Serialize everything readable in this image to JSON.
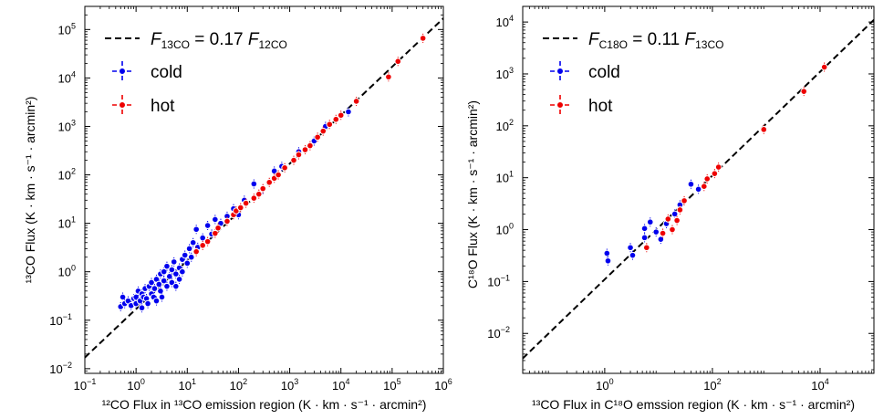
{
  "chart_data": [
    {
      "type": "scatter",
      "xlabel": "¹²CO Flux in ¹³CO emission region (K · km · s⁻¹ · arcmin²)",
      "ylabel": "¹³CO Flux (K · km · s⁻¹ · arcmin²)",
      "xscale": "log",
      "yscale": "log",
      "xlim": [
        0.1,
        1000000
      ],
      "ylim": [
        0.008,
        300000
      ],
      "xticks": [
        {
          "v": 0.1,
          "e": "−1"
        },
        {
          "v": 1,
          "e": "0"
        },
        {
          "v": 10,
          "e": "1"
        },
        {
          "v": 100,
          "e": "2"
        },
        {
          "v": 1000,
          "e": "3"
        },
        {
          "v": 10000,
          "e": "4"
        },
        {
          "v": 100000,
          "e": "5"
        },
        {
          "v": 1000000,
          "e": "6"
        }
      ],
      "yticks": [
        {
          "v": 0.01,
          "e": "−2"
        },
        {
          "v": 0.1,
          "e": "−1"
        },
        {
          "v": 1,
          "e": "0"
        },
        {
          "v": 10,
          "e": "1"
        },
        {
          "v": 100,
          "e": "2"
        },
        {
          "v": 1000,
          "e": "3"
        },
        {
          "v": 10000,
          "e": "4"
        },
        {
          "v": 100000,
          "e": "5"
        }
      ],
      "legend_position": "top-left",
      "fit": {
        "label_main": "F",
        "label_sub1": "13CO",
        "label_mid": " = 0.17 ",
        "label_sub2": "12CO",
        "slope": 0.17,
        "style": "dashed",
        "color": "#000000"
      },
      "series": [
        {
          "name": "cold",
          "color": "#0000ee",
          "points": [
            [
              0.5,
              0.19
            ],
            [
              0.55,
              0.3
            ],
            [
              0.6,
              0.22
            ],
            [
              0.7,
              0.25
            ],
            [
              0.8,
              0.2
            ],
            [
              0.9,
              0.28
            ],
            [
              1.0,
              0.3
            ],
            [
              1.0,
              0.22
            ],
            [
              1.1,
              0.4
            ],
            [
              1.2,
              0.25
            ],
            [
              1.3,
              0.18
            ],
            [
              1.3,
              0.35
            ],
            [
              1.4,
              0.3
            ],
            [
              1.5,
              0.45
            ],
            [
              1.6,
              0.28
            ],
            [
              1.7,
              0.22
            ],
            [
              1.8,
              0.5
            ],
            [
              2.0,
              0.35
            ],
            [
              2.0,
              0.6
            ],
            [
              2.2,
              0.3
            ],
            [
              2.3,
              0.45
            ],
            [
              2.5,
              0.7
            ],
            [
              2.5,
              0.25
            ],
            [
              2.8,
              0.55
            ],
            [
              3.0,
              0.4
            ],
            [
              3.0,
              0.9
            ],
            [
              3.2,
              0.3
            ],
            [
              3.5,
              0.65
            ],
            [
              3.5,
              1.0
            ],
            [
              4.0,
              0.5
            ],
            [
              4.0,
              1.3
            ],
            [
              4.5,
              0.8
            ],
            [
              5.0,
              0.6
            ],
            [
              5.0,
              1.1
            ],
            [
              5.5,
              1.6
            ],
            [
              6.0,
              0.9
            ],
            [
              6.0,
              0.5
            ],
            [
              7.0,
              1.2
            ],
            [
              7.0,
              0.7
            ],
            [
              8.0,
              1.8
            ],
            [
              8.0,
              1.0
            ],
            [
              9.0,
              2.2
            ],
            [
              10.0,
              1.5
            ],
            [
              11.0,
              3.0
            ],
            [
              12.0,
              2.0
            ],
            [
              13.0,
              4.0
            ],
            [
              15.0,
              7.5
            ],
            [
              16.0,
              3.2
            ],
            [
              20.0,
              5.0
            ],
            [
              25.0,
              9.0
            ],
            [
              30.0,
              6.0
            ],
            [
              35.0,
              12.0
            ],
            [
              45.0,
              10.0
            ],
            [
              60.0,
              14.0
            ],
            [
              80.0,
              20.0
            ],
            [
              100.0,
              15.0
            ],
            [
              130.0,
              30.0
            ],
            [
              200.0,
              65.0
            ],
            [
              300.0,
              50.0
            ],
            [
              500.0,
              120.0
            ],
            [
              700.0,
              150.0
            ],
            [
              1500.0,
              300.0
            ],
            [
              3000.0,
              500.0
            ],
            [
              5000.0,
              1000.0
            ],
            [
              14000.0,
              2000.0
            ]
          ]
        },
        {
          "name": "hot",
          "color": "#ee0000",
          "points": [
            [
              15.0,
              2.6
            ],
            [
              20.0,
              3.5
            ],
            [
              25.0,
              4.2
            ],
            [
              35.0,
              6.2
            ],
            [
              40.0,
              8.0
            ],
            [
              60.0,
              11.0
            ],
            [
              80.0,
              15.0
            ],
            [
              90.0,
              18.0
            ],
            [
              110.0,
              21.0
            ],
            [
              140.0,
              26.0
            ],
            [
              200.0,
              33.0
            ],
            [
              250.0,
              40.0
            ],
            [
              300.0,
              52.0
            ],
            [
              400.0,
              70.0
            ],
            [
              500.0,
              85.0
            ],
            [
              600.0,
              100.0
            ],
            [
              800.0,
              140.0
            ],
            [
              1200.0,
              200.0
            ],
            [
              1500.0,
              260.0
            ],
            [
              2000.0,
              330.0
            ],
            [
              2500.0,
              400.0
            ],
            [
              3500.0,
              600.0
            ],
            [
              4500.0,
              800.0
            ],
            [
              6000.0,
              1100.0
            ],
            [
              8000.0,
              1400.0
            ],
            [
              10000.0,
              1700.0
            ],
            [
              20000.0,
              3300.0
            ],
            [
              85000.0,
              10500.0
            ],
            [
              130000.0,
              22000.0
            ],
            [
              400000.0,
              66000.0
            ]
          ]
        }
      ]
    },
    {
      "type": "scatter",
      "xlabel": "¹³CO Flux in C¹⁸O emssion region (K · km · s⁻¹ · arcmin²)",
      "ylabel": "C¹⁸O Flux (K · km · s⁻¹ · arcmin²)",
      "xscale": "log",
      "yscale": "log",
      "xlim": [
        0.03,
        100000
      ],
      "ylim": [
        0.0017,
        20000
      ],
      "xticks": [
        {
          "v": 1,
          "e": "0"
        },
        {
          "v": 100,
          "e": "2"
        },
        {
          "v": 10000,
          "e": "4"
        }
      ],
      "yticks": [
        {
          "v": 0.01,
          "e": "−2"
        },
        {
          "v": 0.1,
          "e": "−1"
        },
        {
          "v": 1,
          "e": "0"
        },
        {
          "v": 10,
          "e": "1"
        },
        {
          "v": 100,
          "e": "2"
        },
        {
          "v": 1000,
          "e": "3"
        },
        {
          "v": 10000,
          "e": "4"
        }
      ],
      "legend_position": "top-left",
      "fit": {
        "label_main": "F",
        "label_sub1": "C18O",
        "label_mid": " = 0.11 ",
        "label_sub2": "13CO",
        "slope": 0.11,
        "style": "dashed",
        "color": "#000000"
      },
      "series": [
        {
          "name": "cold",
          "color": "#0000ee",
          "points": [
            [
              1.1,
              0.35
            ],
            [
              1.15,
              0.25
            ],
            [
              3.0,
              0.45
            ],
            [
              3.3,
              0.32
            ],
            [
              5.5,
              0.7
            ],
            [
              5.5,
              1.05
            ],
            [
              7.0,
              1.4
            ],
            [
              9.0,
              0.9
            ],
            [
              11.0,
              0.65
            ],
            [
              14.0,
              1.3
            ],
            [
              20.0,
              2.0
            ],
            [
              25.0,
              3.0
            ],
            [
              40.0,
              7.5
            ],
            [
              55.0,
              6.0
            ]
          ]
        },
        {
          "name": "hot",
          "color": "#ee0000",
          "points": [
            [
              6.0,
              0.45
            ],
            [
              12.0,
              0.85
            ],
            [
              15.0,
              1.6
            ],
            [
              18.0,
              1.0
            ],
            [
              22.0,
              1.5
            ],
            [
              25.0,
              2.4
            ],
            [
              30.0,
              3.6
            ],
            [
              70.0,
              6.8
            ],
            [
              80.0,
              9.5
            ],
            [
              110.0,
              12.0
            ],
            [
              130.0,
              16.0
            ],
            [
              900.0,
              85.0
            ],
            [
              5000.0,
              460.0
            ],
            [
              12000.0,
              1350.0
            ]
          ]
        }
      ]
    }
  ]
}
